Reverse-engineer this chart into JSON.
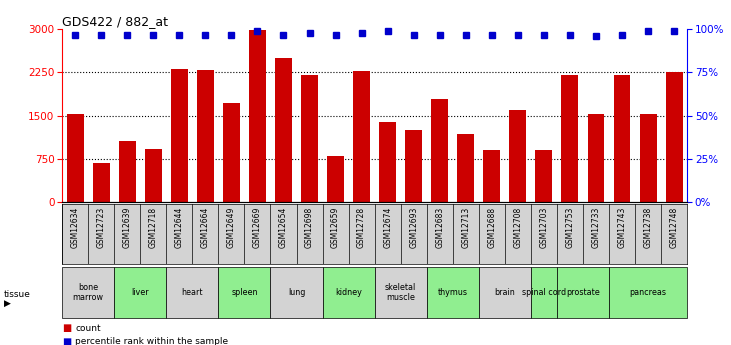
{
  "title": "GDS422 / 882_at",
  "gsm_labels": [
    "GSM12634",
    "GSM12723",
    "GSM12639",
    "GSM12718",
    "GSM12644",
    "GSM12664",
    "GSM12649",
    "GSM12669",
    "GSM12654",
    "GSM12698",
    "GSM12659",
    "GSM12728",
    "GSM12674",
    "GSM12693",
    "GSM12683",
    "GSM12713",
    "GSM12688",
    "GSM12708",
    "GSM12703",
    "GSM12753",
    "GSM12733",
    "GSM12743",
    "GSM12738",
    "GSM12748"
  ],
  "count_values": [
    1520,
    680,
    1050,
    920,
    2310,
    2290,
    1720,
    2990,
    2500,
    2200,
    800,
    2270,
    1380,
    1250,
    1780,
    1180,
    900,
    1600,
    900,
    2200,
    1530,
    2200,
    1520,
    2260
  ],
  "percentile_values": [
    97,
    97,
    97,
    97,
    97,
    97,
    97,
    99,
    97,
    98,
    97,
    98,
    99,
    97,
    97,
    97,
    97,
    97,
    97,
    97,
    96,
    97,
    99,
    99
  ],
  "tissues": [
    {
      "name": "bone\nmarrow",
      "start": 0,
      "end": 2,
      "color": "#d3d3d3"
    },
    {
      "name": "liver",
      "start": 2,
      "end": 4,
      "color": "#90ee90"
    },
    {
      "name": "heart",
      "start": 4,
      "end": 6,
      "color": "#d3d3d3"
    },
    {
      "name": "spleen",
      "start": 6,
      "end": 8,
      "color": "#90ee90"
    },
    {
      "name": "lung",
      "start": 8,
      "end": 10,
      "color": "#d3d3d3"
    },
    {
      "name": "kidney",
      "start": 10,
      "end": 12,
      "color": "#90ee90"
    },
    {
      "name": "skeletal\nmuscle",
      "start": 12,
      "end": 14,
      "color": "#d3d3d3"
    },
    {
      "name": "thymus",
      "start": 14,
      "end": 16,
      "color": "#90ee90"
    },
    {
      "name": "brain",
      "start": 16,
      "end": 18,
      "color": "#d3d3d3"
    },
    {
      "name": "spinal cord",
      "start": 18,
      "end": 19,
      "color": "#90ee90"
    },
    {
      "name": "prostate",
      "start": 19,
      "end": 21,
      "color": "#90ee90"
    },
    {
      "name": "pancreas",
      "start": 21,
      "end": 24,
      "color": "#90ee90"
    }
  ],
  "bar_color": "#cc0000",
  "dot_color": "#0000cc",
  "ylim_left": [
    0,
    3000
  ],
  "ylim_right": [
    0,
    100
  ],
  "yticks_left": [
    0,
    750,
    1500,
    2250,
    3000
  ],
  "yticks_right": [
    0,
    25,
    50,
    75,
    100
  ],
  "gsm_box_color": "#d3d3d3"
}
